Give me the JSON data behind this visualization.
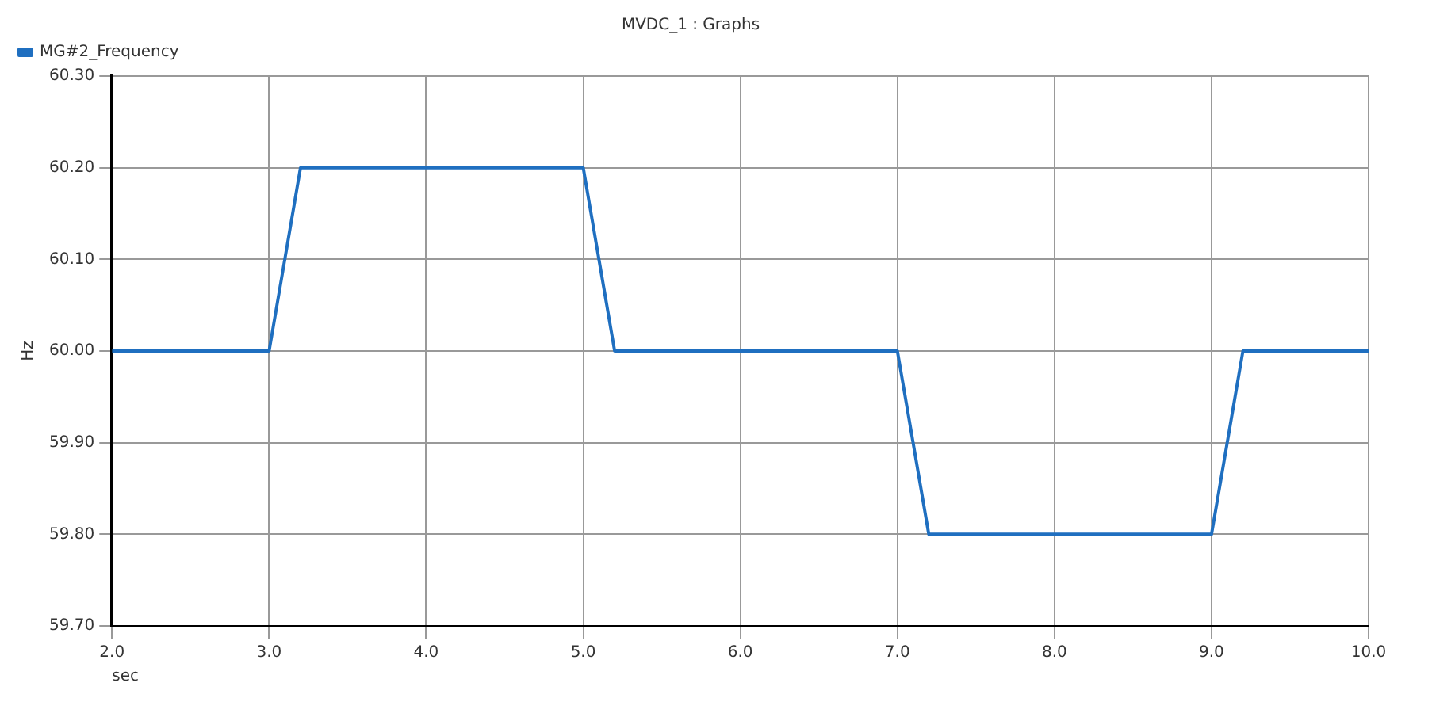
{
  "chart_data": {
    "type": "line",
    "title": "MVDC_1 : Graphs",
    "xlabel": "sec",
    "ylabel": "Hz",
    "x": [
      2.0,
      3.0,
      3.2,
      5.0,
      5.2,
      7.0,
      7.2,
      9.0,
      9.2,
      10.0
    ],
    "series": [
      {
        "name": "MG#2_Frequency",
        "color": "#1f6fc0",
        "values": [
          60.0,
          60.0,
          60.2,
          60.2,
          60.0,
          60.0,
          59.8,
          59.8,
          60.0,
          60.0
        ]
      }
    ],
    "xlim": [
      2.0,
      10.0
    ],
    "ylim": [
      59.7,
      60.3
    ],
    "xticks": [
      {
        "value": 2,
        "label": "2.0"
      },
      {
        "value": 3,
        "label": "3.0"
      },
      {
        "value": 4,
        "label": "4.0"
      },
      {
        "value": 5,
        "label": "5.0"
      },
      {
        "value": 6,
        "label": "6.0"
      },
      {
        "value": 7,
        "label": "7.0"
      },
      {
        "value": 8,
        "label": "8.0"
      },
      {
        "value": 9,
        "label": "9.0"
      },
      {
        "value": 10,
        "label": "10.0"
      }
    ],
    "yticks": [
      {
        "value": 59.7,
        "label": "59.70"
      },
      {
        "value": 59.8,
        "label": "59.80"
      },
      {
        "value": 59.9,
        "label": "59.90"
      },
      {
        "value": 60.0,
        "label": "60.00"
      },
      {
        "value": 60.1,
        "label": "60.10"
      },
      {
        "value": 60.2,
        "label": "60.20"
      },
      {
        "value": 60.3,
        "label": "60.30"
      }
    ],
    "grid": true,
    "legend": "top left",
    "marker": "none",
    "line_style": "solid"
  }
}
